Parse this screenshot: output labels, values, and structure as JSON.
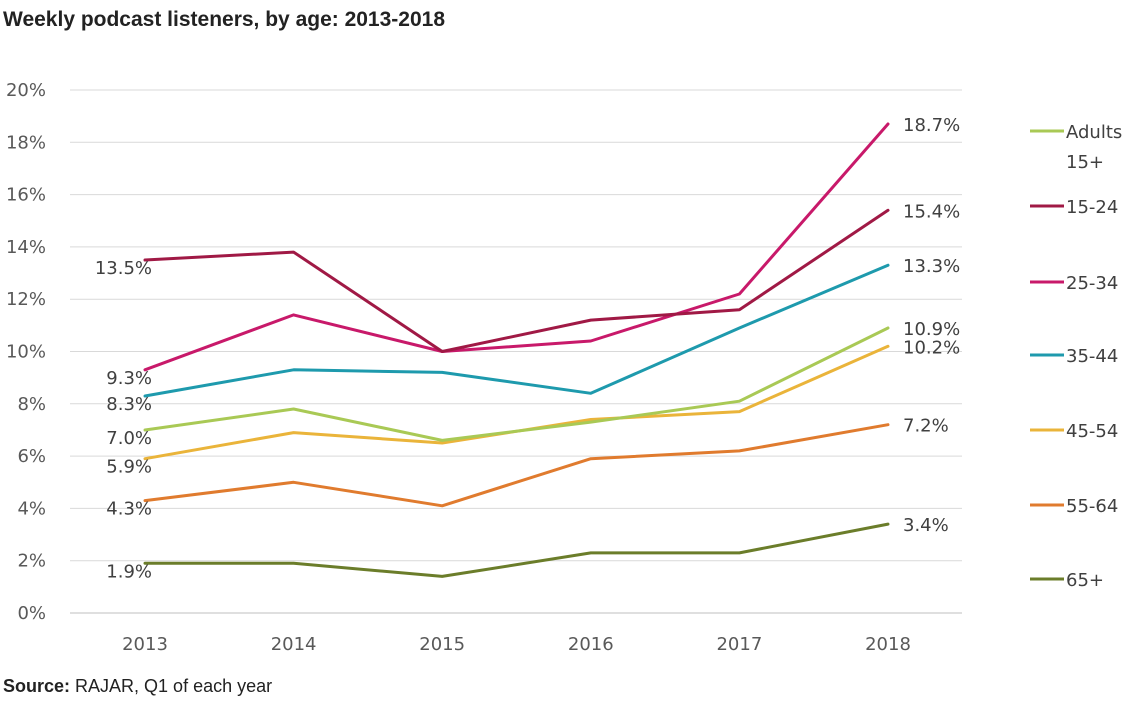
{
  "title": "Weekly podcast listeners, by age: 2013-2018",
  "source": {
    "label": "Source:",
    "text": " RAJAR, Q1 of each year"
  },
  "chart_data": {
    "type": "line",
    "title": "Weekly podcast listeners, by age: 2013-2018",
    "xlabel": "",
    "ylabel": "",
    "categories": [
      "2013",
      "2014",
      "2015",
      "2016",
      "2017",
      "2018"
    ],
    "ylim": [
      0,
      20
    ],
    "yticks": [
      0,
      2,
      4,
      6,
      8,
      10,
      12,
      14,
      16,
      18,
      20
    ],
    "ytick_labels": [
      "0%",
      "2%",
      "4%",
      "6%",
      "8%",
      "10%",
      "12%",
      "14%",
      "16%",
      "18%",
      "20%"
    ],
    "grid": true,
    "legend_position": "right",
    "series": [
      {
        "name": "Adults 15+",
        "legend_lines": [
          "Adults",
          "15+"
        ],
        "color": "#A9C955",
        "values": [
          7.0,
          7.8,
          6.6,
          7.3,
          8.1,
          10.9
        ],
        "start_label": "7.0%",
        "end_label": "10.9%"
      },
      {
        "name": "15-24",
        "legend_lines": [
          "15-24"
        ],
        "color": "#A01945",
        "values": [
          13.5,
          13.8,
          10.0,
          11.2,
          11.6,
          15.4
        ],
        "start_label": "13.5%",
        "end_label": "15.4%"
      },
      {
        "name": "25-34",
        "legend_lines": [
          "25-34"
        ],
        "color": "#C8196A",
        "values": [
          9.3,
          11.4,
          10.0,
          10.4,
          12.2,
          18.7
        ],
        "start_label": "9.3%",
        "end_label": "18.7%"
      },
      {
        "name": "35-44",
        "legend_lines": [
          "35-44"
        ],
        "color": "#1E9AAD",
        "values": [
          8.3,
          9.3,
          9.2,
          8.4,
          10.9,
          13.3
        ],
        "start_label": "8.3%",
        "end_label": "13.3%"
      },
      {
        "name": "45-54",
        "legend_lines": [
          "45-54"
        ],
        "color": "#EAB43A",
        "values": [
          5.9,
          6.9,
          6.5,
          7.4,
          7.7,
          10.2
        ],
        "start_label": "5.9%",
        "end_label": "10.2%"
      },
      {
        "name": "55-64",
        "legend_lines": [
          "55-64"
        ],
        "color": "#E07B2E",
        "values": [
          4.3,
          5.0,
          4.1,
          5.9,
          6.2,
          7.2
        ],
        "start_label": "4.3%",
        "end_label": "7.2%"
      },
      {
        "name": "65+",
        "legend_lines": [
          "65+"
        ],
        "color": "#6B7D2A",
        "values": [
          1.9,
          1.9,
          1.4,
          2.3,
          2.3,
          3.4
        ],
        "start_label": "1.9%",
        "end_label": "3.4%"
      }
    ]
  }
}
